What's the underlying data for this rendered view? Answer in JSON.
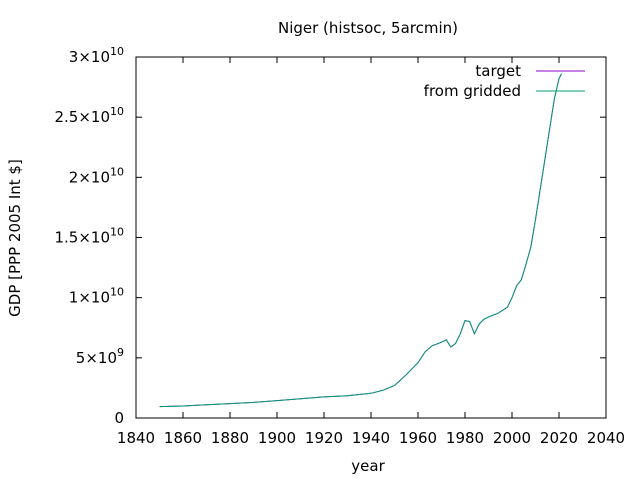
{
  "chart_data": {
    "type": "line",
    "title": "Niger (histsoc, 5arcmin)",
    "xlabel": "year",
    "ylabel": "GDP [PPP 2005 Int $]",
    "xlim": [
      1840,
      2040
    ],
    "ylim": [
      0,
      30000000000
    ],
    "x_ticks": [
      1840,
      1860,
      1880,
      1900,
      1920,
      1940,
      1960,
      1980,
      2000,
      2020,
      2040
    ],
    "y_ticks": [
      {
        "value": 0,
        "mantissa": "0",
        "exp": ""
      },
      {
        "value": 5000000000,
        "mantissa": "5×10",
        "exp": "9"
      },
      {
        "value": 10000000000,
        "mantissa": "1×10",
        "exp": "10"
      },
      {
        "value": 15000000000,
        "mantissa": "1.5×10",
        "exp": "10"
      },
      {
        "value": 20000000000,
        "mantissa": "2×10",
        "exp": "10"
      },
      {
        "value": 25000000000,
        "mantissa": "2.5×10",
        "exp": "10"
      },
      {
        "value": 30000000000,
        "mantissa": "3×10",
        "exp": "10"
      }
    ],
    "legend_position": "top-right",
    "grid": false,
    "series": [
      {
        "name": "target",
        "color": "#9400d3",
        "x": [
          1850,
          1860,
          1870,
          1880,
          1890,
          1900,
          1910,
          1920,
          1930,
          1940,
          1945,
          1950,
          1955,
          1960,
          1963,
          1966,
          1970,
          1972,
          1974,
          1976,
          1978,
          1980,
          1982,
          1984,
          1986,
          1988,
          1990,
          1994,
          1998,
          2000,
          2002,
          2004,
          2006,
          2008,
          2010,
          2012,
          2014,
          2016,
          2018,
          2020,
          2021
        ],
        "y": [
          950000000,
          1000000000,
          1100000000,
          1200000000,
          1300000000,
          1450000000,
          1600000000,
          1750000000,
          1850000000,
          2050000000,
          2300000000,
          2700000000,
          3600000000,
          4600000000,
          5500000000,
          6000000000,
          6300000000,
          6500000000,
          5900000000,
          6200000000,
          7000000000,
          8100000000,
          8000000000,
          7000000000,
          7800000000,
          8200000000,
          8400000000,
          8700000000,
          9200000000,
          10000000000,
          11000000000,
          11500000000,
          12800000000,
          14200000000,
          16500000000,
          19000000000,
          21500000000,
          24000000000,
          26500000000,
          28200000000,
          28600000000
        ]
      },
      {
        "name": "from gridded",
        "color": "#009e73",
        "x": [
          1850,
          1860,
          1870,
          1880,
          1890,
          1900,
          1910,
          1920,
          1930,
          1940,
          1945,
          1950,
          1955,
          1960,
          1963,
          1966,
          1970,
          1972,
          1974,
          1976,
          1978,
          1980,
          1982,
          1984,
          1986,
          1988,
          1990,
          1994,
          1998,
          2000,
          2002,
          2004,
          2006,
          2008,
          2010,
          2012,
          2014,
          2016,
          2018,
          2020,
          2021
        ],
        "y": [
          950000000,
          1000000000,
          1100000000,
          1200000000,
          1300000000,
          1450000000,
          1600000000,
          1750000000,
          1850000000,
          2050000000,
          2300000000,
          2700000000,
          3600000000,
          4600000000,
          5500000000,
          6000000000,
          6300000000,
          6500000000,
          5900000000,
          6200000000,
          7000000000,
          8100000000,
          8000000000,
          7000000000,
          7800000000,
          8200000000,
          8400000000,
          8700000000,
          9200000000,
          10000000000,
          11000000000,
          11500000000,
          12800000000,
          14200000000,
          16500000000,
          19000000000,
          21500000000,
          24000000000,
          26500000000,
          28200000000,
          28600000000
        ]
      }
    ]
  }
}
